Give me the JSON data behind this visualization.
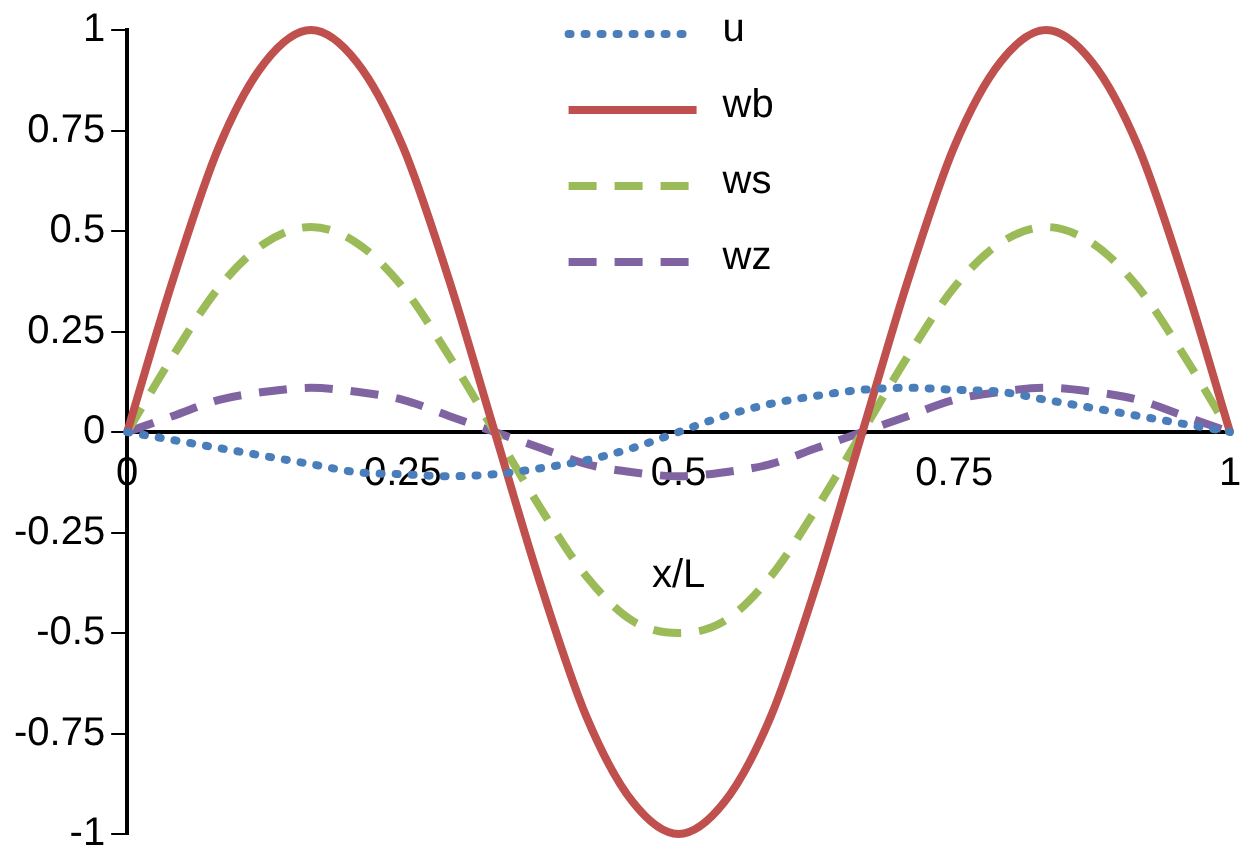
{
  "chart_data": {
    "type": "line",
    "xlabel": "x/L",
    "x": [
      0,
      0.0417,
      0.0833,
      0.125,
      0.1667,
      0.2083,
      0.25,
      0.2917,
      0.3333,
      0.375,
      0.4167,
      0.4583,
      0.5,
      0.5417,
      0.5833,
      0.625,
      0.6667,
      0.7083,
      0.75,
      0.7917,
      0.8333,
      0.875,
      0.9167,
      0.9583,
      1
    ],
    "series": [
      {
        "name": "u",
        "color": "#4a7ebb",
        "line_style": "dotted",
        "values": [
          0,
          -0.02,
          -0.04,
          -0.06,
          -0.08,
          -0.1,
          -0.105,
          -0.11,
          -0.105,
          -0.09,
          -0.07,
          -0.04,
          0,
          0.04,
          0.07,
          0.09,
          0.105,
          0.11,
          0.105,
          0.1,
          0.08,
          0.06,
          0.04,
          0.02,
          0
        ]
      },
      {
        "name": "wb",
        "color": "#c0504d",
        "line_style": "solid",
        "values": [
          0,
          0.38,
          0.71,
          0.92,
          1,
          0.92,
          0.71,
          0.38,
          0,
          -0.38,
          -0.71,
          -0.92,
          -1,
          -0.92,
          -0.71,
          -0.38,
          0,
          0.38,
          0.71,
          0.92,
          1,
          0.92,
          0.71,
          0.38,
          0
        ]
      },
      {
        "name": "ws",
        "color": "#9bbb59",
        "line_style": "dashed",
        "values": [
          0,
          0.19,
          0.36,
          0.47,
          0.51,
          0.47,
          0.36,
          0.19,
          0,
          -0.19,
          -0.36,
          -0.47,
          -0.5,
          -0.47,
          -0.36,
          -0.19,
          0,
          0.19,
          0.36,
          0.47,
          0.51,
          0.47,
          0.36,
          0.19,
          0
        ]
      },
      {
        "name": "wz",
        "color": "#8064a2",
        "line_style": "dashed",
        "values": [
          0,
          0.04,
          0.08,
          0.1,
          0.11,
          0.1,
          0.08,
          0.04,
          0,
          -0.04,
          -0.08,
          -0.1,
          -0.11,
          -0.1,
          -0.08,
          -0.04,
          0,
          0.04,
          0.08,
          0.1,
          0.11,
          0.1,
          0.08,
          0.04,
          0
        ]
      }
    ],
    "xlim": [
      0,
      1
    ],
    "xticks": [
      0,
      0.25,
      0.5,
      0.75,
      1
    ],
    "ylim": [
      -1,
      1
    ],
    "yticks": [
      -1,
      -0.75,
      -0.5,
      -0.25,
      0,
      0.25,
      0.5,
      0.75,
      1
    ],
    "grid": false,
    "legend": "top",
    "marker": "none"
  }
}
